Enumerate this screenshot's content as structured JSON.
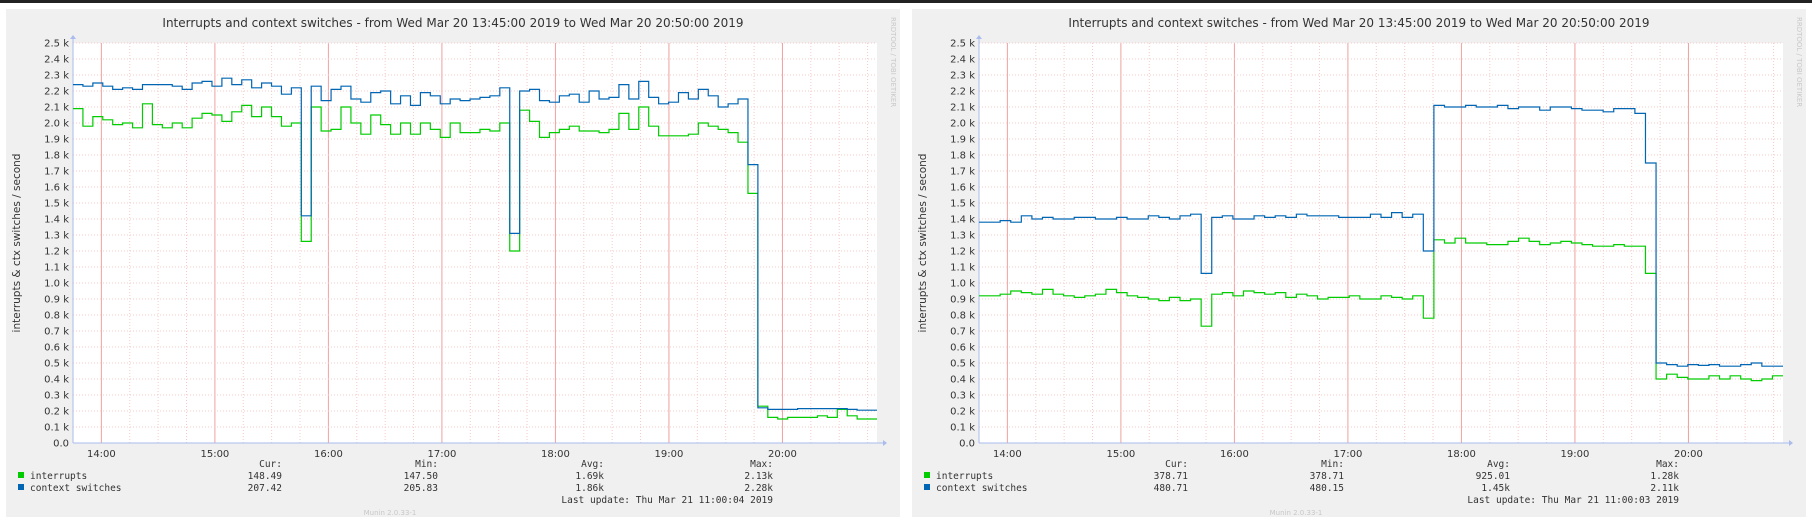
{
  "chart_data": [
    {
      "type": "line",
      "title": "Interrupts and context switches - from Wed Mar 20 13:45:00 2019 to Wed Mar 20 20:50:00 2019",
      "ylabel": "interrupts & ctx switches / second",
      "xlabel": "",
      "ylim": [
        0,
        2500
      ],
      "x_ticks": [
        "14:00",
        "15:00",
        "16:00",
        "17:00",
        "18:00",
        "19:00",
        "20:00"
      ],
      "y_ticks": [
        "0.0",
        "0.1 k",
        "0.2 k",
        "0.3 k",
        "0.4 k",
        "0.5 k",
        "0.6 k",
        "0.7 k",
        "0.8 k",
        "0.9 k",
        "1.0 k",
        "1.1 k",
        "1.2 k",
        "1.3 k",
        "1.4 k",
        "1.5 k",
        "1.6 k",
        "1.7 k",
        "1.8 k",
        "1.9 k",
        "2.0 k",
        "2.1 k",
        "2.2 k",
        "2.3 k",
        "2.4 k",
        "2.5 k"
      ],
      "grid": true,
      "legend": "bottom-left",
      "side_label": "RRDTOOL / TOBI OETIKER",
      "version_label": "Munin 2.0.33-1",
      "stats_headers": {
        "cur": "Cur:",
        "min": "Min:",
        "avg": "Avg:",
        "max": "Max:"
      },
      "last_update": "Last update:  Thu Mar 21 11:00:04 2019",
      "series": [
        {
          "name": "interrupts",
          "color": "#00cc00",
          "cur": "148.49",
          "min": "147.50",
          "avg": "1.69k",
          "max": "2.13k",
          "values": [
            2090,
            1980,
            2040,
            2020,
            1990,
            2000,
            1970,
            2120,
            1990,
            1970,
            2000,
            1970,
            2030,
            2060,
            2050,
            2010,
            2070,
            2110,
            2040,
            2100,
            2040,
            1980,
            2000,
            1260,
            2100,
            1950,
            1960,
            2100,
            2000,
            1930,
            2050,
            1990,
            1930,
            2000,
            1930,
            2000,
            1960,
            1910,
            2000,
            1940,
            1940,
            1960,
            1950,
            2000,
            1200,
            2080,
            2010,
            1910,
            1940,
            1960,
            1980,
            1950,
            1950,
            1940,
            1960,
            2060,
            1960,
            2100,
            1980,
            1920,
            1920,
            1920,
            1930,
            2000,
            1980,
            1960,
            1940,
            1880,
            1560,
            230,
            160,
            150,
            160,
            160,
            160,
            170,
            160,
            210,
            170,
            150,
            150
          ]
        },
        {
          "name": "context switches",
          "color": "#0066b3",
          "cur": "207.42",
          "min": "205.83",
          "avg": "1.86k",
          "max": "2.28k",
          "values": [
            2240,
            2230,
            2250,
            2230,
            2210,
            2220,
            2210,
            2240,
            2240,
            2240,
            2230,
            2210,
            2250,
            2260,
            2230,
            2280,
            2240,
            2270,
            2220,
            2250,
            2230,
            2180,
            2220,
            1420,
            2230,
            2140,
            2210,
            2230,
            2150,
            2130,
            2190,
            2200,
            2120,
            2170,
            2110,
            2190,
            2170,
            2120,
            2150,
            2140,
            2150,
            2160,
            2170,
            2220,
            1310,
            2200,
            2210,
            2140,
            2130,
            2170,
            2180,
            2130,
            2200,
            2150,
            2160,
            2240,
            2150,
            2260,
            2160,
            2120,
            2130,
            2190,
            2150,
            2210,
            2170,
            2100,
            2120,
            2150,
            1740,
            220,
            210,
            210,
            210,
            215,
            215,
            215,
            215,
            215,
            210,
            205,
            205
          ]
        }
      ]
    },
    {
      "type": "line",
      "title": "Interrupts and context switches - from Wed Mar 20 13:45:00 2019 to Wed Mar 20 20:50:00 2019",
      "ylabel": "interrupts & ctx switches / second",
      "xlabel": "",
      "ylim": [
        0,
        2500
      ],
      "x_ticks": [
        "14:00",
        "15:00",
        "16:00",
        "17:00",
        "18:00",
        "19:00",
        "20:00"
      ],
      "y_ticks": [
        "0.0",
        "0.1 k",
        "0.2 k",
        "0.3 k",
        "0.4 k",
        "0.5 k",
        "0.6 k",
        "0.7 k",
        "0.8 k",
        "0.9 k",
        "1.0 k",
        "1.1 k",
        "1.2 k",
        "1.3 k",
        "1.4 k",
        "1.5 k",
        "1.6 k",
        "1.7 k",
        "1.8 k",
        "1.9 k",
        "2.0 k",
        "2.1 k",
        "2.2 k",
        "2.3 k",
        "2.4 k",
        "2.5 k"
      ],
      "grid": true,
      "legend": "bottom-left",
      "side_label": "RRDTOOL / TOBI OETIKER",
      "version_label": "Munin 2.0.33-1",
      "stats_headers": {
        "cur": "Cur:",
        "min": "Min:",
        "avg": "Avg:",
        "max": "Max:"
      },
      "last_update": "Last update:  Thu Mar 21 11:00:03 2019",
      "series": [
        {
          "name": "interrupts",
          "color": "#00cc00",
          "cur": "378.71",
          "min": "378.71",
          "avg": "925.01",
          "max": "1.28k",
          "values": [
            920,
            920,
            930,
            950,
            940,
            930,
            960,
            930,
            920,
            910,
            920,
            930,
            960,
            940,
            920,
            910,
            900,
            890,
            910,
            890,
            900,
            730,
            930,
            940,
            920,
            950,
            940,
            930,
            940,
            910,
            930,
            920,
            900,
            910,
            910,
            920,
            900,
            900,
            920,
            910,
            900,
            920,
            780,
            1270,
            1250,
            1280,
            1250,
            1250,
            1240,
            1240,
            1260,
            1280,
            1260,
            1240,
            1250,
            1260,
            1250,
            1240,
            1230,
            1230,
            1240,
            1230,
            1230,
            1060,
            400,
            430,
            410,
            400,
            400,
            420,
            400,
            420,
            400,
            390,
            400,
            420
          ]
        },
        {
          "name": "context switches",
          "color": "#0066b3",
          "cur": "480.71",
          "min": "480.15",
          "avg": "1.45k",
          "max": "2.11k",
          "values": [
            1380,
            1380,
            1390,
            1380,
            1420,
            1400,
            1410,
            1400,
            1400,
            1410,
            1410,
            1400,
            1400,
            1410,
            1400,
            1400,
            1420,
            1410,
            1400,
            1420,
            1430,
            1060,
            1410,
            1420,
            1400,
            1400,
            1420,
            1410,
            1420,
            1410,
            1430,
            1420,
            1420,
            1420,
            1410,
            1410,
            1410,
            1430,
            1410,
            1440,
            1410,
            1430,
            1200,
            2110,
            2100,
            2100,
            2110,
            2100,
            2100,
            2110,
            2090,
            2100,
            2100,
            2080,
            2100,
            2100,
            2090,
            2080,
            2080,
            2070,
            2090,
            2090,
            2060,
            1750,
            500,
            490,
            480,
            490,
            485,
            490,
            480,
            480,
            490,
            500,
            480,
            480
          ]
        }
      ]
    }
  ]
}
